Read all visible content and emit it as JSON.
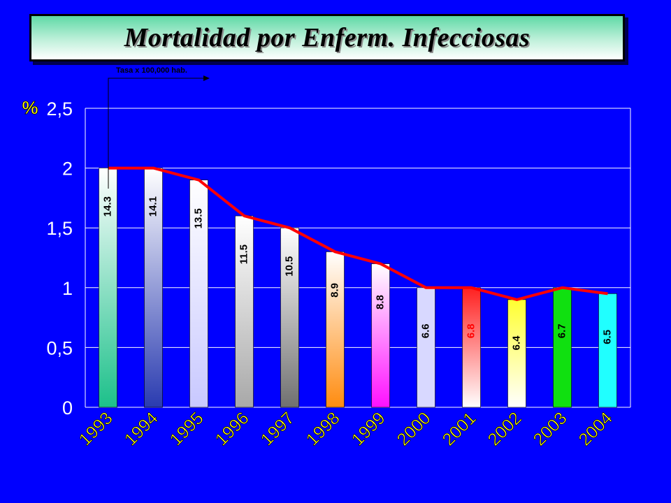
{
  "header": {
    "title": "Mortalidad por Enferm. Infecciosas",
    "subtitle": "Tasa x 100,000 hab."
  },
  "chart_data": {
    "type": "bar",
    "title": "Mortalidad por Enferm. Infecciosas",
    "ylabel": "%",
    "ylim": [
      0,
      2.5
    ],
    "yticks": [
      "0",
      "0,5",
      "1",
      "1,5",
      "2",
      "2,5"
    ],
    "categories": [
      "1993",
      "1994",
      "1995",
      "1996",
      "1997",
      "1998",
      "1999",
      "2000",
      "2001",
      "2002",
      "2003",
      "2004"
    ],
    "series": [
      {
        "values": [
          2.0,
          2.0,
          1.9,
          1.6,
          1.5,
          1.3,
          1.2,
          1.0,
          1.0,
          0.9,
          1.0,
          0.95
        ]
      }
    ],
    "line_values": [
      2.0,
      2.0,
      1.9,
      1.6,
      1.5,
      1.3,
      1.2,
      1.0,
      1.0,
      0.9,
      1.0,
      0.95
    ],
    "data_labels": [
      "14.3",
      "14.1",
      "13.5",
      "11.5",
      "10.5",
      "8.9",
      "8.8",
      "6.6",
      "6.8",
      "6.4",
      "6.7",
      "6.5"
    ],
    "bar_fills": [
      [
        "#ffffff",
        "#1cc08a"
      ],
      [
        "#ffffff",
        "#2a3bb0"
      ],
      [
        "#ffffff",
        "#c8c8ff"
      ],
      [
        "#ffffff",
        "#a8a8a8"
      ],
      [
        "#ffffff",
        "#707070"
      ],
      [
        "#ffffff",
        "#ff8c10"
      ],
      [
        "#ffffff",
        "#ff10ff"
      ],
      [
        "#d8d8ff",
        "#d8d8ff"
      ],
      [
        "#ff2020",
        "#ffffff"
      ],
      [
        "#ffff30",
        "#ffffff"
      ],
      [
        "#10e010",
        "#10e010"
      ],
      [
        "#20ffff",
        "#20ffff"
      ]
    ],
    "label_colors": [
      "#000000",
      "#000000",
      "#000000",
      "#000000",
      "#000000",
      "#000000",
      "#000000",
      "#000000",
      "#ff0000",
      "#000000",
      "#000000",
      "#000000"
    ],
    "colors": {
      "line": "#ff0000",
      "axis_text": "#ffffff",
      "category_text": "#ffff00",
      "grid": "#ffffff",
      "ylabel_text": "#ffff00"
    },
    "grid": true
  }
}
